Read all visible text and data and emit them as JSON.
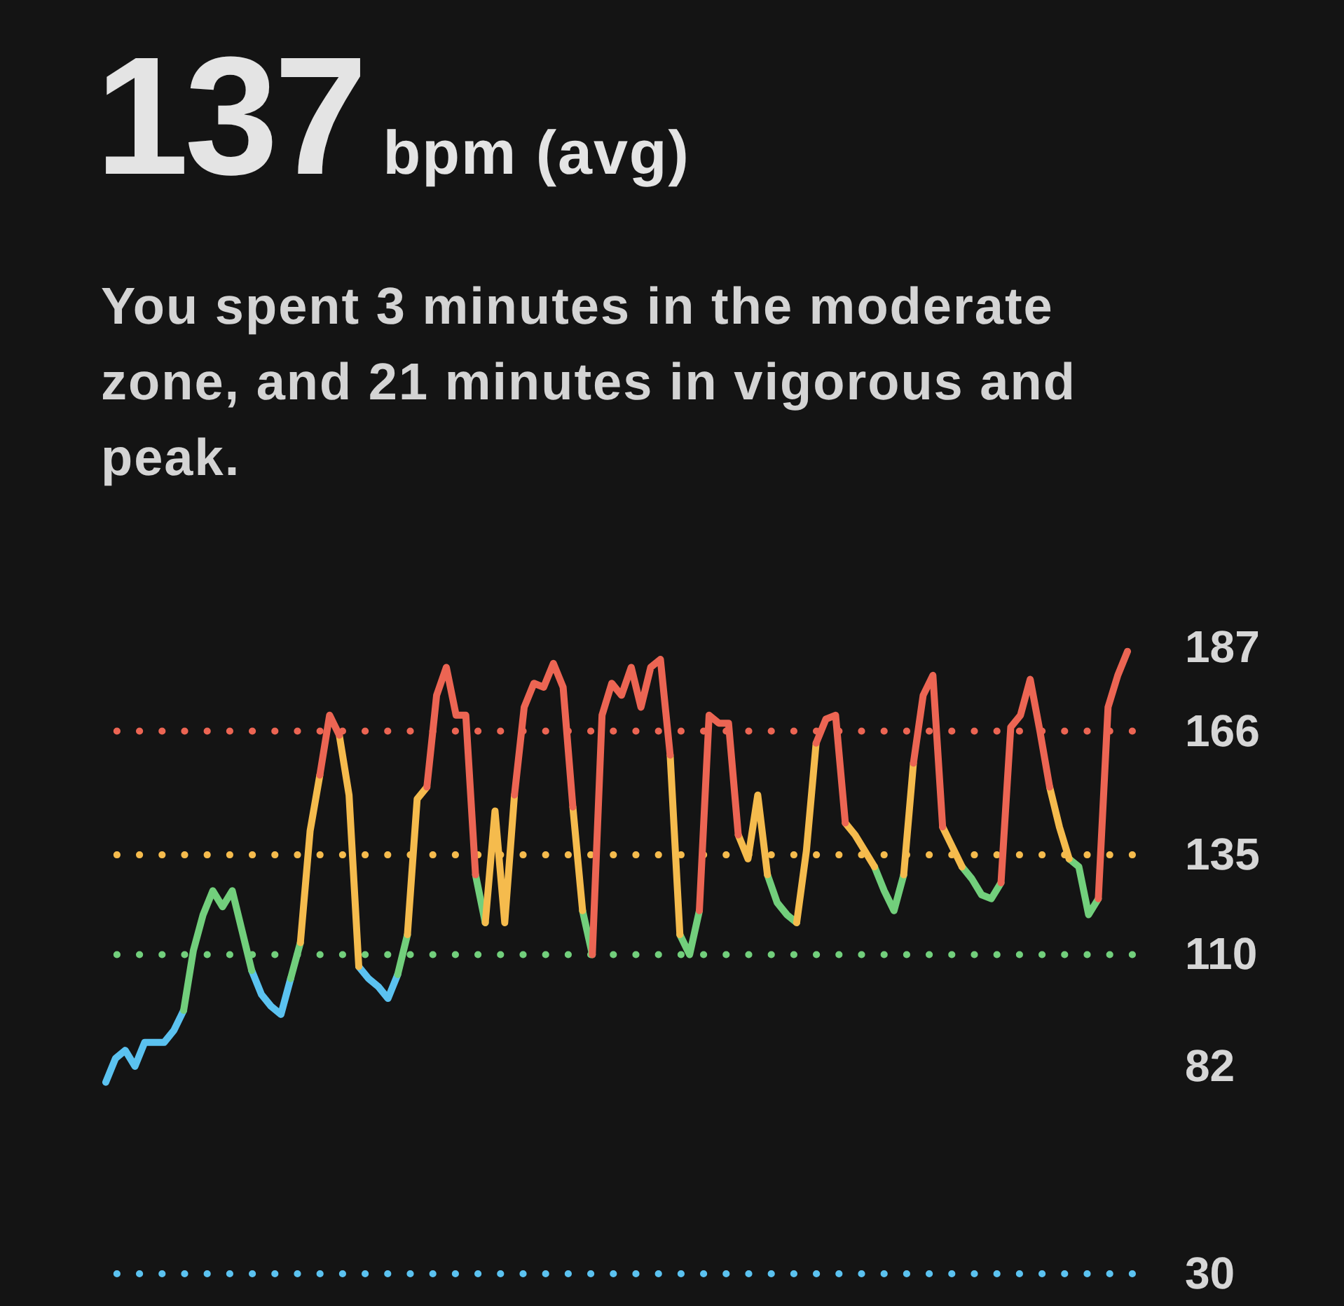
{
  "chart_data": {
    "type": "line",
    "title": "137",
    "subtitle": "bpm (avg)",
    "annotations": [
      "You spent 3 minutes in the moderate zone, and 21 minutes in vigorous and peak."
    ],
    "categories": [
      null,
      null,
      null,
      null,
      null,
      null,
      null,
      null,
      null,
      null,
      null,
      null,
      null,
      null,
      null,
      null,
      null,
      null,
      null,
      null,
      null,
      null,
      null,
      null,
      null,
      null,
      null,
      null,
      null,
      null,
      null,
      null,
      null,
      null,
      null,
      null,
      null,
      null,
      null,
      null,
      null,
      null,
      null,
      null,
      null,
      null,
      null,
      null,
      null,
      null,
      null,
      null,
      null,
      null,
      null,
      null,
      null,
      null,
      null,
      null,
      null,
      null,
      null,
      null,
      null,
      null,
      null,
      null,
      null,
      null,
      null,
      null,
      null,
      null,
      null,
      null,
      null,
      null,
      null,
      null,
      null,
      null,
      null,
      null,
      null,
      null,
      null,
      null,
      null,
      null,
      null,
      null,
      null,
      null,
      null,
      null,
      null,
      null,
      null,
      null,
      null,
      null,
      null,
      null,
      null,
      null
    ],
    "series": [
      {
        "color": "#5bc2f0",
        "values": [
          78,
          84,
          86,
          82,
          88,
          88,
          88,
          91,
          96,
          null,
          null,
          null,
          null,
          null,
          null,
          106,
          100,
          97,
          95,
          104,
          null,
          null,
          null,
          null,
          null,
          null,
          107,
          104,
          102,
          99,
          105,
          null,
          null,
          null,
          null,
          null,
          null,
          null,
          null,
          null,
          null,
          null,
          null,
          null,
          null,
          null,
          null,
          null,
          null,
          null,
          null,
          null,
          null,
          null,
          null,
          null,
          null,
          null,
          null,
          null,
          null,
          null,
          null,
          null,
          null,
          null,
          null,
          null,
          null,
          null,
          null,
          null,
          null,
          null,
          null,
          null,
          null,
          null,
          null,
          null,
          null,
          null,
          null,
          null,
          null,
          null,
          null,
          null,
          null,
          null,
          null,
          null,
          null,
          null,
          null,
          null,
          null,
          null,
          null,
          null,
          null,
          null,
          null,
          null,
          null,
          null
        ]
      },
      {
        "color": "#72cf7c",
        "values": [
          null,
          null,
          null,
          null,
          null,
          null,
          null,
          null,
          96,
          111,
          120,
          126,
          122,
          126,
          116,
          106,
          null,
          null,
          null,
          104,
          113,
          null,
          null,
          null,
          null,
          null,
          null,
          null,
          null,
          null,
          105,
          115,
          null,
          null,
          null,
          null,
          null,
          null,
          130,
          118,
          null,
          null,
          null,
          null,
          null,
          null,
          null,
          null,
          null,
          121,
          110,
          null,
          null,
          null,
          null,
          null,
          null,
          null,
          null,
          115,
          110,
          121,
          null,
          null,
          null,
          null,
          null,
          null,
          130,
          123,
          120,
          118,
          null,
          null,
          null,
          null,
          null,
          null,
          null,
          132,
          126,
          121,
          130,
          null,
          null,
          null,
          null,
          null,
          132,
          129,
          125,
          124,
          128,
          null,
          null,
          null,
          null,
          null,
          null,
          134,
          132,
          120,
          124,
          null,
          null,
          null
        ]
      },
      {
        "color": "#f5bb4d",
        "values": [
          null,
          null,
          null,
          null,
          null,
          null,
          null,
          null,
          null,
          null,
          null,
          null,
          null,
          null,
          null,
          null,
          null,
          null,
          null,
          null,
          113,
          141,
          155,
          null,
          165,
          150,
          107,
          null,
          null,
          null,
          null,
          115,
          149,
          152,
          null,
          null,
          null,
          null,
          null,
          118,
          146,
          118,
          150,
          null,
          null,
          null,
          null,
          null,
          147,
          121,
          null,
          null,
          null,
          null,
          null,
          null,
          null,
          null,
          160,
          115,
          null,
          null,
          null,
          null,
          null,
          140,
          134,
          150,
          130,
          null,
          null,
          118,
          136,
          163,
          null,
          null,
          143,
          140,
          136,
          132,
          null,
          null,
          130,
          158,
          null,
          null,
          142,
          137,
          132,
          null,
          null,
          null,
          null,
          null,
          null,
          null,
          null,
          152,
          142,
          134,
          null,
          null,
          null,
          null,
          null,
          null
        ]
      },
      {
        "color": "#ec6553",
        "values": [
          null,
          null,
          null,
          null,
          null,
          null,
          null,
          null,
          null,
          null,
          null,
          null,
          null,
          null,
          null,
          null,
          null,
          null,
          null,
          null,
          null,
          null,
          155,
          170,
          165,
          null,
          null,
          null,
          null,
          null,
          null,
          null,
          null,
          152,
          175,
          182,
          170,
          170,
          130,
          null,
          null,
          null,
          150,
          172,
          178,
          177,
          183,
          177,
          147,
          null,
          110,
          170,
          178,
          175,
          182,
          172,
          182,
          184,
          160,
          null,
          null,
          121,
          170,
          168,
          168,
          140,
          null,
          null,
          null,
          null,
          null,
          null,
          null,
          163,
          169,
          170,
          143,
          null,
          null,
          null,
          null,
          null,
          null,
          158,
          175,
          180,
          142,
          null,
          null,
          null,
          null,
          null,
          128,
          167,
          170,
          179,
          166,
          152,
          null,
          null,
          null,
          null,
          124,
          172,
          180,
          186
        ]
      }
    ],
    "ylim": [
      30,
      187
    ],
    "yticks": [
      187,
      166,
      135,
      110,
      82,
      30
    ],
    "tick_labels": "y",
    "ref_lines": [
      {
        "axis": "y",
        "value": 166,
        "color": "#ec6553",
        "line_style": "dotted"
      },
      {
        "axis": "y",
        "value": 135,
        "color": "#f5bb4d",
        "line_style": "dotted"
      },
      {
        "axis": "y",
        "value": 110,
        "color": "#72cf7c",
        "line_style": "dotted"
      },
      {
        "axis": "y",
        "value": 30,
        "color": "#5bc2f0",
        "line_style": "dotted"
      }
    ]
  }
}
